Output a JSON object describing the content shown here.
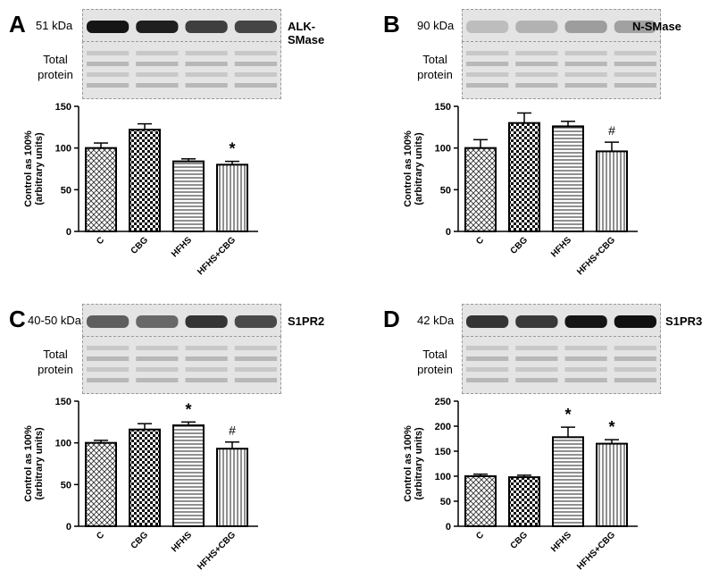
{
  "panels": [
    {
      "letter": "A",
      "kda": "51 kDa",
      "protein": "ALK-SMase",
      "total_protein": [
        "Total",
        "protein"
      ],
      "band_intensity": [
        0.95,
        0.9,
        0.75,
        0.72
      ]
    },
    {
      "letter": "B",
      "kda": "90 kDa",
      "protein": "N-SMase",
      "total_protein": [
        "Total",
        "protein"
      ],
      "band_intensity": [
        0.15,
        0.2,
        0.3,
        0.28
      ]
    },
    {
      "letter": "C",
      "kda": "40-50 kDa",
      "protein": "S1PR2",
      "total_protein": [
        "Total",
        "protein"
      ],
      "band_intensity": [
        0.6,
        0.55,
        0.8,
        0.7
      ]
    },
    {
      "letter": "D",
      "kda": "42 kDa",
      "protein": "S1PR3",
      "total_protein": [
        "Total",
        "protein"
      ],
      "band_intensity": [
        0.8,
        0.78,
        0.95,
        0.97
      ]
    }
  ],
  "chart_data": [
    {
      "type": "bar",
      "panel": "A",
      "categories": [
        "C",
        "CBG",
        "HFHS",
        "HFHS+CBG"
      ],
      "values": [
        100,
        122,
        84,
        80
      ],
      "errors": [
        6,
        7,
        3,
        4
      ],
      "annotations": [
        "",
        "",
        "",
        "*"
      ],
      "ylabel": [
        "Control as 100%",
        "(arbitrary units)"
      ],
      "ylim": [
        0,
        150
      ],
      "yticks": [
        0,
        50,
        100,
        150
      ]
    },
    {
      "type": "bar",
      "panel": "B",
      "categories": [
        "C",
        "CBG",
        "HFHS",
        "HFHS+CBG"
      ],
      "values": [
        100,
        130,
        126,
        96
      ],
      "errors": [
        10,
        12,
        6,
        11
      ],
      "annotations": [
        "",
        "",
        "",
        "#"
      ],
      "ylabel": [
        "Control as 100%",
        "(arbitrary units)"
      ],
      "ylim": [
        0,
        150
      ],
      "yticks": [
        0,
        50,
        100,
        150
      ]
    },
    {
      "type": "bar",
      "panel": "C",
      "categories": [
        "C",
        "CBG",
        "HFHS",
        "HFHS+CBG"
      ],
      "values": [
        100,
        116,
        121,
        93
      ],
      "errors": [
        3,
        7,
        4,
        8
      ],
      "annotations": [
        "",
        "",
        "*",
        "#"
      ],
      "ylabel": [
        "Control as 100%",
        "(arbitrary units)"
      ],
      "ylim": [
        0,
        150
      ],
      "yticks": [
        0,
        50,
        100,
        150
      ]
    },
    {
      "type": "bar",
      "panel": "D",
      "categories": [
        "C",
        "CBG",
        "HFHS",
        "HFHS+CBG"
      ],
      "values": [
        100,
        98,
        178,
        165
      ],
      "errors": [
        4,
        4,
        20,
        8
      ],
      "annotations": [
        "",
        "",
        "*",
        "*"
      ],
      "ylabel": [
        "Control as 100%",
        "(arbitrary units)"
      ],
      "ylim": [
        0,
        250
      ],
      "yticks": [
        0,
        50,
        100,
        150,
        200,
        250
      ]
    }
  ]
}
